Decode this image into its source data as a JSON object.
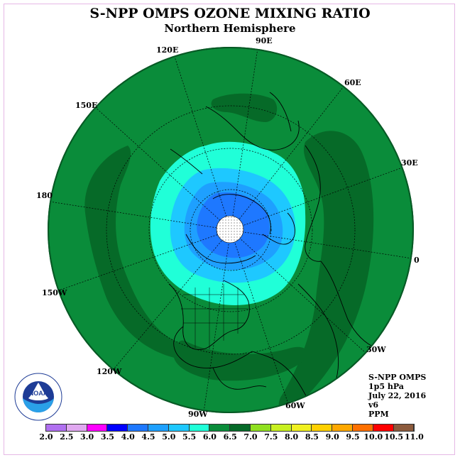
{
  "title": "S-NPP OMPS OZONE MIXING RATIO",
  "subtitle": "Northern Hemisphere",
  "longitude_labels": [
    "90E",
    "60E",
    "30E",
    "0",
    "30W",
    "60W",
    "90W",
    "120W",
    "150W",
    "180",
    "150E",
    "120E"
  ],
  "info": {
    "instrument": "S-NPP OMPS",
    "pressure": "1p5 hPa",
    "date": "July 22, 2016",
    "version": "v6",
    "units": "PPM"
  },
  "logo_text": "NOAA",
  "colorbar": {
    "ticks": [
      "2.0",
      "2.5",
      "3.0",
      "3.5",
      "4.0",
      "4.5",
      "5.0",
      "5.5",
      "6.0",
      "6.5",
      "7.0",
      "7.5",
      "8.0",
      "8.5",
      "9.0",
      "9.5",
      "10.0",
      "10.5",
      "11.0"
    ],
    "colors": [
      "#b070f0",
      "#e0a8f0",
      "#ff00ff",
      "#0000ff",
      "#1e78ff",
      "#1ea0ff",
      "#1ec8ff",
      "#20ffd8",
      "#0a8c3a",
      "#066a28",
      "#90e020",
      "#c8f020",
      "#f0f020",
      "#ffd000",
      "#ffa800",
      "#ff7000",
      "#ff0000",
      "#8c5a3c"
    ]
  },
  "colors": {
    "ocean_green": "#0a8c3a",
    "dark_green": "#066a28",
    "cyan": "#20ffd8",
    "light_blue": "#1ec8ff",
    "mid_blue": "#1ea0ff",
    "deep_blue": "#1e78ff"
  }
}
